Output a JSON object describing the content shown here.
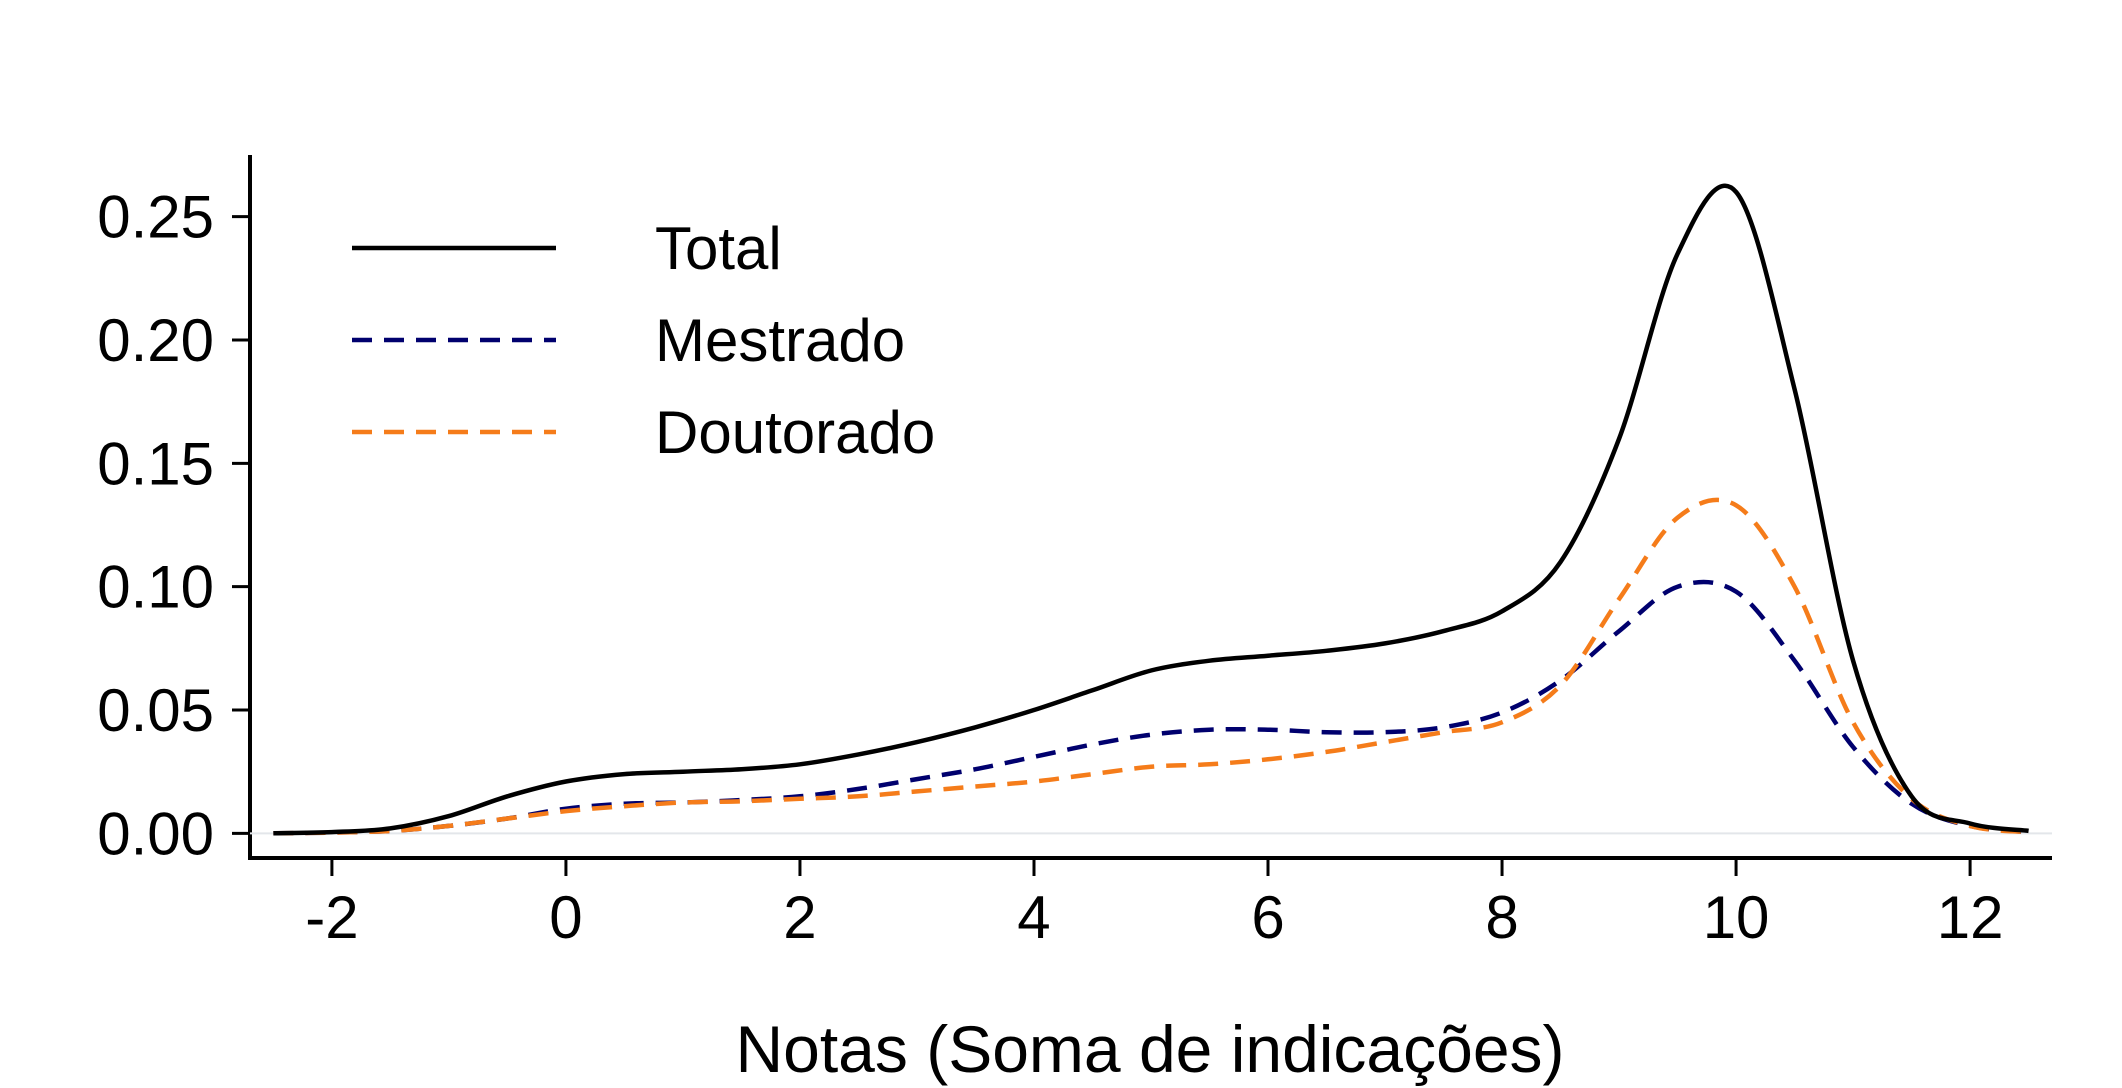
{
  "chart_data": {
    "type": "line",
    "xlabel": "Notas (Soma de indicações)",
    "ylabel": "",
    "xlim": [
      -2.7,
      12.7
    ],
    "ylim": [
      -0.01,
      0.275
    ],
    "xticks": [
      -2,
      0,
      2,
      4,
      6,
      8,
      10,
      12
    ],
    "xtick_labels": [
      "-2",
      "0",
      "2",
      "4",
      "6",
      "8",
      "10",
      "12"
    ],
    "yticks": [
      0,
      0.05,
      0.1,
      0.15,
      0.2,
      0.25
    ],
    "ytick_labels": [
      "0.00",
      "0.05",
      "0.10",
      "0.15",
      "0.20",
      "0.25"
    ],
    "grid": false,
    "legend_position": "top-left",
    "x": [
      -2.5,
      -2,
      -1.5,
      -1,
      -0.5,
      0,
      0.5,
      1,
      1.5,
      2,
      2.5,
      3,
      3.5,
      4,
      4.5,
      5,
      5.5,
      6,
      6.5,
      7,
      7.5,
      8,
      8.5,
      9,
      9.5,
      10,
      10.5,
      11,
      11.5,
      12,
      12.5
    ],
    "series": [
      {
        "name": "Total",
        "color": "#000000",
        "dash": "solid",
        "values": [
          0.0,
          0.0005,
          0.002,
          0.007,
          0.015,
          0.021,
          0.024,
          0.025,
          0.026,
          0.028,
          0.032,
          0.037,
          0.043,
          0.05,
          0.058,
          0.066,
          0.07,
          0.072,
          0.074,
          0.077,
          0.082,
          0.09,
          0.11,
          0.16,
          0.235,
          0.26,
          0.18,
          0.07,
          0.015,
          0.004,
          0.001
        ]
      },
      {
        "name": "Mestrado",
        "color": "#00006e",
        "dash": "dashed",
        "values": [
          0.0,
          0.0003,
          0.001,
          0.003,
          0.006,
          0.01,
          0.012,
          0.0125,
          0.0135,
          0.015,
          0.018,
          0.022,
          0.026,
          0.031,
          0.036,
          0.04,
          0.042,
          0.042,
          0.041,
          0.041,
          0.043,
          0.049,
          0.062,
          0.082,
          0.1,
          0.098,
          0.07,
          0.035,
          0.012,
          0.003,
          0.0005
        ]
      },
      {
        "name": "Doutorado",
        "color": "#f57c1a",
        "dash": "dashed",
        "values": [
          0.0,
          0.0003,
          0.001,
          0.003,
          0.006,
          0.009,
          0.011,
          0.0125,
          0.013,
          0.014,
          0.015,
          0.017,
          0.019,
          0.021,
          0.024,
          0.027,
          0.028,
          0.03,
          0.033,
          0.037,
          0.041,
          0.045,
          0.06,
          0.095,
          0.128,
          0.133,
          0.1,
          0.045,
          0.014,
          0.003,
          0.0005
        ]
      }
    ]
  }
}
